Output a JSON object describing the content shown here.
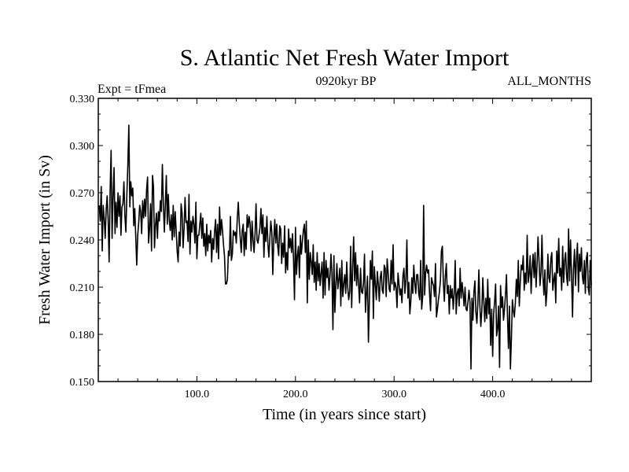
{
  "chart_data": {
    "type": "line",
    "title": "S. Atlantic Net Fresh Water Import",
    "left_label": "Expt = tFmea",
    "center_label": "0920kyr BP",
    "right_label": "ALL_MONTHS",
    "xlabel": "Time (in years since start)",
    "ylabel": "Fresh Water Import (in Sv)",
    "xlim": [
      0,
      500
    ],
    "ylim": [
      0.15,
      0.33
    ],
    "x_ticks": [
      100,
      200,
      300,
      400
    ],
    "x_tick_labels": [
      "100.0",
      "200.0",
      "300.0",
      "400.0"
    ],
    "y_ticks": [
      0.15,
      0.18,
      0.21,
      0.24,
      0.27,
      0.3,
      0.33
    ],
    "y_tick_labels": [
      "0.150",
      "0.180",
      "0.210",
      "0.240",
      "0.270",
      "0.300",
      "0.330"
    ],
    "line_color": "#000000",
    "series": [
      {
        "name": "Fresh Water Import",
        "x_start": 1,
        "x_step": 1,
        "values": [
          0.262,
          0.252,
          0.274,
          0.233,
          0.262,
          0.254,
          0.241,
          0.259,
          0.268,
          0.253,
          0.226,
          0.271,
          0.297,
          0.241,
          0.268,
          0.286,
          0.244,
          0.264,
          0.248,
          0.27,
          0.255,
          0.268,
          0.243,
          0.261,
          0.263,
          0.277,
          0.255,
          0.245,
          0.269,
          0.288,
          0.313,
          0.261,
          0.277,
          0.268,
          0.273,
          0.249,
          0.26,
          0.242,
          0.224,
          0.243,
          0.251,
          0.262,
          0.258,
          0.244,
          0.265,
          0.254,
          0.266,
          0.255,
          0.272,
          0.28,
          0.238,
          0.247,
          0.263,
          0.233,
          0.281,
          0.274,
          0.235,
          0.249,
          0.257,
          0.241,
          0.258,
          0.252,
          0.265,
          0.258,
          0.288,
          0.263,
          0.245,
          0.262,
          0.281,
          0.25,
          0.269,
          0.253,
          0.246,
          0.256,
          0.24,
          0.262,
          0.242,
          0.258,
          0.246,
          0.233,
          0.226,
          0.245,
          0.236,
          0.263,
          0.257,
          0.235,
          0.247,
          0.267,
          0.251,
          0.252,
          0.239,
          0.269,
          0.231,
          0.252,
          0.245,
          0.255,
          0.25,
          0.238,
          0.264,
          0.228,
          0.243,
          0.243,
          0.25,
          0.257,
          0.241,
          0.254,
          0.236,
          0.244,
          0.23,
          0.25,
          0.233,
          0.243,
          0.238,
          0.246,
          0.226,
          0.241,
          0.234,
          0.246,
          0.253,
          0.232,
          0.25,
          0.228,
          0.261,
          0.243,
          0.253,
          0.246,
          0.237,
          0.23,
          0.212,
          0.212,
          0.215,
          0.233,
          0.23,
          0.255,
          0.227,
          0.231,
          0.246,
          0.243,
          0.245,
          0.238,
          0.254,
          0.264,
          0.251,
          0.241,
          0.232,
          0.246,
          0.25,
          0.23,
          0.245,
          0.234,
          0.256,
          0.248,
          0.255,
          0.25,
          0.233,
          0.252,
          0.24,
          0.232,
          0.244,
          0.263,
          0.24,
          0.238,
          0.243,
          0.248,
          0.26,
          0.244,
          0.256,
          0.229,
          0.248,
          0.239,
          0.255,
          0.238,
          0.229,
          0.241,
          0.252,
          0.245,
          0.218,
          0.24,
          0.253,
          0.238,
          0.25,
          0.236,
          0.23,
          0.249,
          0.247,
          0.225,
          0.238,
          0.229,
          0.249,
          0.219,
          0.232,
          0.221,
          0.247,
          0.235,
          0.241,
          0.232,
          0.244,
          0.228,
          0.202,
          0.248,
          0.218,
          0.23,
          0.236,
          0.216,
          0.243,
          0.231,
          0.239,
          0.246,
          0.25,
          0.232,
          0.252,
          0.2,
          0.24,
          0.215,
          0.232,
          0.226,
          0.218,
          0.237,
          0.213,
          0.226,
          0.208,
          0.232,
          0.214,
          0.225,
          0.211,
          0.219,
          0.226,
          0.203,
          0.232,
          0.205,
          0.227,
          0.216,
          0.222,
          0.208,
          0.217,
          0.231,
          0.219,
          0.183,
          0.23,
          0.194,
          0.212,
          0.225,
          0.209,
          0.215,
          0.222,
          0.198,
          0.227,
          0.204,
          0.212,
          0.218,
          0.206,
          0.226,
          0.21,
          0.202,
          0.207,
          0.236,
          0.197,
          0.222,
          0.242,
          0.214,
          0.232,
          0.211,
          0.224,
          0.212,
          0.2,
          0.222,
          0.207,
          0.206,
          0.213,
          0.231,
          0.194,
          0.206,
          0.217,
          0.175,
          0.202,
          0.227,
          0.215,
          0.233,
          0.19,
          0.223,
          0.212,
          0.202,
          0.22,
          0.212,
          0.201,
          0.216,
          0.22,
          0.208,
          0.206,
          0.224,
          0.222,
          0.204,
          0.228,
          0.219,
          0.209,
          0.207,
          0.227,
          0.212,
          0.237,
          0.208,
          0.213,
          0.21,
          0.197,
          0.219,
          0.212,
          0.205,
          0.209,
          0.2,
          0.217,
          0.222,
          0.206,
          0.215,
          0.24,
          0.203,
          0.213,
          0.193,
          0.201,
          0.216,
          0.206,
          0.224,
          0.213,
          0.206,
          0.218,
          0.218,
          0.206,
          0.202,
          0.227,
          0.196,
          0.204,
          0.262,
          0.205,
          0.219,
          0.224,
          0.219,
          0.221,
          0.206,
          0.195,
          0.216,
          0.213,
          0.211,
          0.204,
          0.225,
          0.191,
          0.196,
          0.202,
          0.207,
          0.214,
          0.233,
          0.236,
          0.213,
          0.201,
          0.217,
          0.225,
          0.206,
          0.211,
          0.193,
          0.211,
          0.203,
          0.209,
          0.196,
          0.206,
          0.227,
          0.193,
          0.206,
          0.209,
          0.198,
          0.222,
          0.203,
          0.213,
          0.206,
          0.198,
          0.21,
          0.196,
          0.195,
          0.201,
          0.208,
          0.2,
          0.158,
          0.203,
          0.189,
          0.207,
          0.214,
          0.194,
          0.187,
          0.2,
          0.221,
          0.199,
          0.185,
          0.195,
          0.216,
          0.201,
          0.188,
          0.203,
          0.19,
          0.215,
          0.193,
          0.203,
          0.173,
          0.196,
          0.166,
          0.193,
          0.201,
          0.212,
          0.179,
          0.184,
          0.198,
          0.159,
          0.211,
          0.197,
          0.204,
          0.189,
          0.196,
          0.205,
          0.218,
          0.192,
          0.171,
          0.198,
          0.158,
          0.177,
          0.202,
          0.195,
          0.191,
          0.2,
          0.215,
          0.204,
          0.227,
          0.198,
          0.213,
          0.224,
          0.221,
          0.23,
          0.208,
          0.219,
          0.212,
          0.243,
          0.213,
          0.218,
          0.23,
          0.206,
          0.222,
          0.231,
          0.216,
          0.232,
          0.21,
          0.223,
          0.242,
          0.227,
          0.211,
          0.219,
          0.243,
          0.217,
          0.205,
          0.221,
          0.198,
          0.207,
          0.231,
          0.216,
          0.213,
          0.228,
          0.232,
          0.208,
          0.215,
          0.219,
          0.2,
          0.233,
          0.219,
          0.241,
          0.217,
          0.222,
          0.208,
          0.236,
          0.213,
          0.227,
          0.232,
          0.217,
          0.211,
          0.247,
          0.214,
          0.24,
          0.218,
          0.191,
          0.222,
          0.234,
          0.211,
          0.228,
          0.238,
          0.207,
          0.231,
          0.22,
          0.235,
          0.217,
          0.212,
          0.227,
          0.206,
          0.228,
          0.232,
          0.209,
          0.205,
          0.227,
          0.211
        ]
      }
    ]
  }
}
